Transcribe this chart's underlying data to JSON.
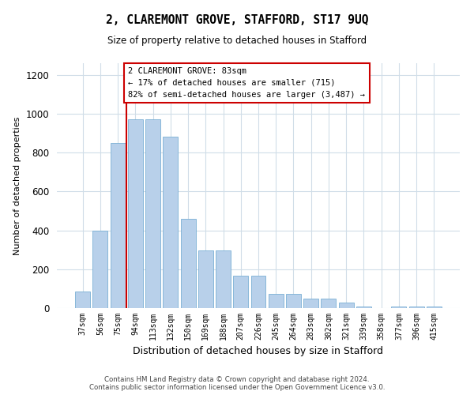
{
  "title": "2, CLAREMONT GROVE, STAFFORD, ST17 9UQ",
  "subtitle": "Size of property relative to detached houses in Stafford",
  "xlabel": "Distribution of detached houses by size in Stafford",
  "ylabel": "Number of detached properties",
  "categories": [
    "37sqm",
    "56sqm",
    "75sqm",
    "94sqm",
    "113sqm",
    "132sqm",
    "150sqm",
    "169sqm",
    "188sqm",
    "207sqm",
    "226sqm",
    "245sqm",
    "264sqm",
    "283sqm",
    "302sqm",
    "321sqm",
    "339sqm",
    "358sqm",
    "377sqm",
    "396sqm",
    "415sqm"
  ],
  "bar_heights": [
    85,
    400,
    850,
    970,
    970,
    880,
    460,
    295,
    295,
    165,
    165,
    75,
    75,
    50,
    50,
    30,
    8,
    2,
    8,
    8,
    8
  ],
  "bar_color": "#b8d0ea",
  "bar_edge_color": "#7aafd4",
  "annotation_box_text": "2 CLAREMONT GROVE: 83sqm\n← 17% of detached houses are smaller (715)\n82% of semi-detached houses are larger (3,487) →",
  "annotation_box_color": "#cc0000",
  "vline_x": 2.5,
  "ylim": [
    0,
    1260
  ],
  "yticks": [
    0,
    200,
    400,
    600,
    800,
    1000,
    1200
  ],
  "footer_line1": "Contains HM Land Registry data © Crown copyright and database right 2024.",
  "footer_line2": "Contains public sector information licensed under the Open Government Licence v3.0.",
  "bg_color": "#ffffff",
  "grid_color": "#d0dde8"
}
